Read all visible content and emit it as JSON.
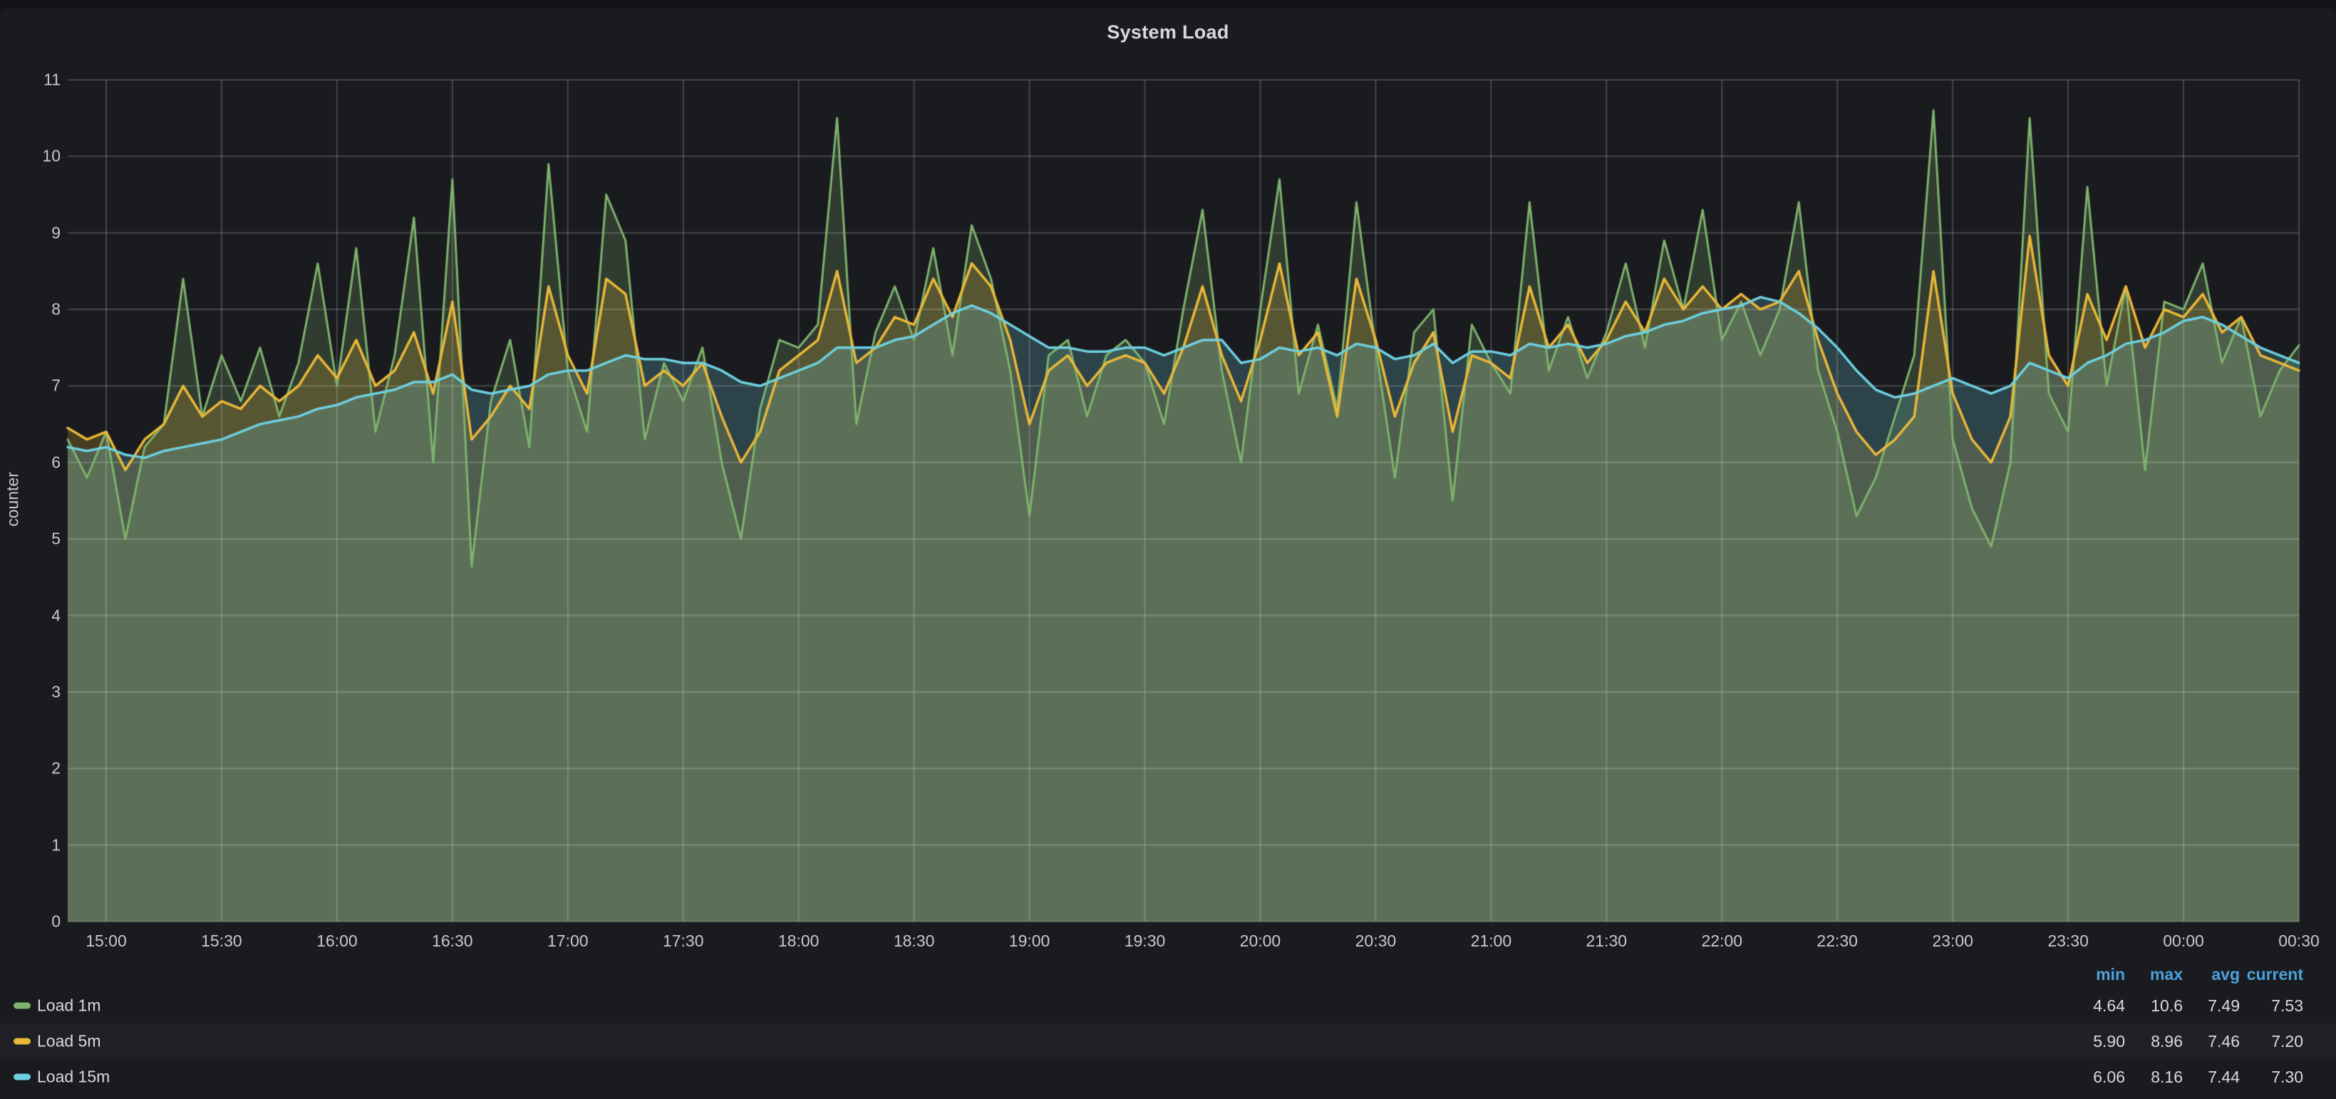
{
  "panel": {
    "title": "System Load"
  },
  "colors": {
    "page_bg": "#121318",
    "panel_bg": "#1a1b1f",
    "grid": "rgba(255,255,255,0.19)",
    "title_text": "#d8d9da",
    "tick_text": "#c7c8ca",
    "legend_text": "#d8d9da",
    "legend_header_blue": "#4aa3dd",
    "legend_row_highlight": "#1f2127",
    "series_green": "#7eb26d",
    "series_yellow": "#eab839",
    "series_blue": "#6ed0e0"
  },
  "chart_data": {
    "type": "area",
    "title": "System Load",
    "xlabel": "",
    "ylabel": "counter",
    "ylim": [
      0,
      11
    ],
    "y_ticks": [
      0,
      1,
      2,
      3,
      4,
      5,
      6,
      7,
      8,
      9,
      10,
      11
    ],
    "grid": true,
    "legend_position": "bottom-table",
    "fill_opacity": 0.22,
    "x_domain_minutes": 580,
    "sample_step_minutes": 5,
    "x_tick_minutes": [
      10,
      40,
      70,
      100,
      130,
      160,
      190,
      220,
      250,
      280,
      310,
      340,
      370,
      400,
      430,
      460,
      490,
      520,
      550,
      580
    ],
    "x_tick_labels": [
      "15:00",
      "15:30",
      "16:00",
      "16:30",
      "17:00",
      "17:30",
      "18:00",
      "18:30",
      "19:00",
      "19:30",
      "20:00",
      "20:30",
      "21:00",
      "21:30",
      "22:00",
      "22:30",
      "23:00",
      "23:30",
      "00:00",
      "00:30"
    ],
    "series": [
      {
        "name": "Load 1m",
        "color": "#7eb26d",
        "line_width": 3,
        "stats": {
          "min": "4.64",
          "max": "10.6",
          "avg": "7.49",
          "current": "7.53"
        },
        "values": [
          6.3,
          5.8,
          6.4,
          5.0,
          6.2,
          6.5,
          8.4,
          6.6,
          7.4,
          6.8,
          7.5,
          6.6,
          7.3,
          8.6,
          7.0,
          8.8,
          6.4,
          7.4,
          9.2,
          6.0,
          9.7,
          4.64,
          6.8,
          7.6,
          6.2,
          9.9,
          7.2,
          6.4,
          9.5,
          8.9,
          6.3,
          7.3,
          6.8,
          7.5,
          6.0,
          5.0,
          6.7,
          7.6,
          7.5,
          7.8,
          10.5,
          6.5,
          7.7,
          8.3,
          7.6,
          8.8,
          7.4,
          9.1,
          8.4,
          7.2,
          5.3,
          7.4,
          7.6,
          6.6,
          7.4,
          7.6,
          7.3,
          6.5,
          8.0,
          9.3,
          7.2,
          6.0,
          8.0,
          9.7,
          6.9,
          7.8,
          6.7,
          9.4,
          7.5,
          5.8,
          7.7,
          8.0,
          5.5,
          7.8,
          7.3,
          6.9,
          9.4,
          7.2,
          7.9,
          7.1,
          7.7,
          8.6,
          7.5,
          8.9,
          8.0,
          9.3,
          7.6,
          8.1,
          7.4,
          8.0,
          9.4,
          7.2,
          6.4,
          5.3,
          5.8,
          6.6,
          7.4,
          10.6,
          6.3,
          5.4,
          4.9,
          6.0,
          10.5,
          6.9,
          6.4,
          9.6,
          7.0,
          8.3,
          5.9,
          8.1,
          8.0,
          8.6,
          7.3,
          7.9,
          6.6,
          7.2,
          7.53
        ]
      },
      {
        "name": "Load 5m",
        "color": "#eab839",
        "line_width": 3.5,
        "stats": {
          "min": "5.90",
          "max": "8.96",
          "avg": "7.46",
          "current": "7.20"
        },
        "values": [
          6.45,
          6.3,
          6.4,
          5.9,
          6.3,
          6.5,
          7.0,
          6.6,
          6.8,
          6.7,
          7.0,
          6.8,
          7.0,
          7.4,
          7.1,
          7.6,
          7.0,
          7.2,
          7.7,
          6.9,
          8.1,
          6.3,
          6.6,
          7.0,
          6.7,
          8.3,
          7.4,
          6.9,
          8.4,
          8.2,
          7.0,
          7.2,
          7.0,
          7.3,
          6.6,
          6.0,
          6.4,
          7.2,
          7.4,
          7.6,
          8.5,
          7.3,
          7.5,
          7.9,
          7.8,
          8.4,
          7.9,
          8.6,
          8.3,
          7.6,
          6.5,
          7.2,
          7.4,
          7.0,
          7.3,
          7.4,
          7.3,
          6.9,
          7.5,
          8.3,
          7.4,
          6.8,
          7.6,
          8.6,
          7.4,
          7.7,
          6.6,
          8.4,
          7.6,
          6.6,
          7.3,
          7.7,
          6.4,
          7.4,
          7.3,
          7.1,
          8.3,
          7.5,
          7.8,
          7.3,
          7.6,
          8.1,
          7.7,
          8.4,
          8.0,
          8.3,
          8.0,
          8.2,
          8.0,
          8.1,
          8.5,
          7.6,
          6.9,
          6.4,
          6.1,
          6.3,
          6.6,
          8.5,
          6.9,
          6.3,
          6.0,
          6.6,
          8.96,
          7.4,
          7.0,
          8.2,
          7.6,
          8.3,
          7.5,
          8.0,
          7.9,
          8.2,
          7.7,
          7.9,
          7.4,
          7.3,
          7.2
        ]
      },
      {
        "name": "Load 15m",
        "color": "#6ed0e0",
        "line_width": 3.5,
        "stats": {
          "min": "6.06",
          "max": "8.16",
          "avg": "7.44",
          "current": "7.30"
        },
        "values": [
          6.2,
          6.15,
          6.2,
          6.1,
          6.06,
          6.15,
          6.2,
          6.25,
          6.3,
          6.4,
          6.5,
          6.55,
          6.6,
          6.7,
          6.75,
          6.85,
          6.9,
          6.95,
          7.05,
          7.05,
          7.15,
          6.95,
          6.9,
          6.95,
          7.0,
          7.15,
          7.2,
          7.2,
          7.3,
          7.4,
          7.35,
          7.35,
          7.3,
          7.3,
          7.2,
          7.05,
          7.0,
          7.1,
          7.2,
          7.3,
          7.5,
          7.5,
          7.5,
          7.6,
          7.65,
          7.8,
          7.95,
          8.05,
          7.95,
          7.8,
          7.65,
          7.5,
          7.5,
          7.45,
          7.45,
          7.5,
          7.5,
          7.4,
          7.5,
          7.6,
          7.6,
          7.3,
          7.35,
          7.5,
          7.45,
          7.5,
          7.4,
          7.55,
          7.5,
          7.35,
          7.4,
          7.55,
          7.3,
          7.45,
          7.45,
          7.4,
          7.55,
          7.5,
          7.55,
          7.5,
          7.55,
          7.65,
          7.7,
          7.8,
          7.85,
          7.95,
          8.0,
          8.05,
          8.16,
          8.1,
          7.95,
          7.75,
          7.5,
          7.2,
          6.95,
          6.85,
          6.9,
          7.0,
          7.1,
          7.0,
          6.9,
          7.0,
          7.3,
          7.2,
          7.1,
          7.3,
          7.4,
          7.55,
          7.6,
          7.7,
          7.85,
          7.9,
          7.8,
          7.65,
          7.5,
          7.4,
          7.3
        ]
      }
    ],
    "legend": {
      "columns": [
        "min",
        "max",
        "avg",
        "current"
      ],
      "highlight_row_index": 1
    }
  }
}
